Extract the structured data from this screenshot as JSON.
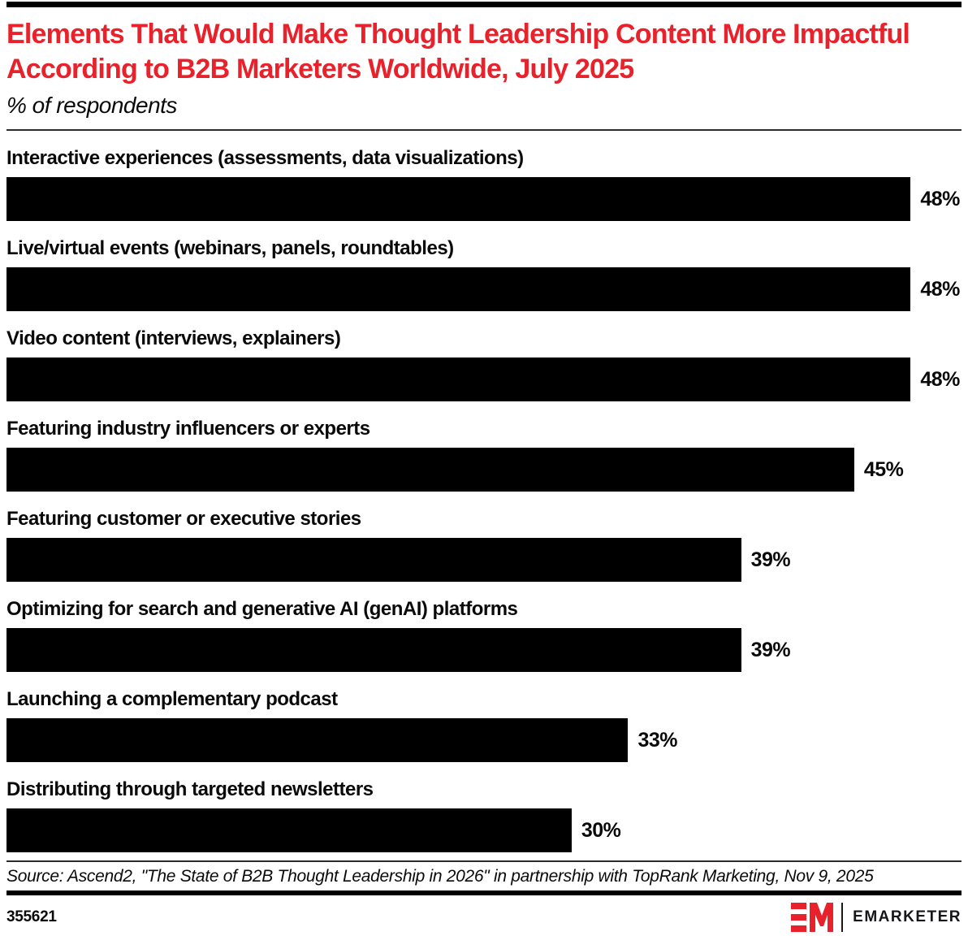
{
  "header": {
    "title": "Elements That Would Make Thought Leadership Content More Impactful According to B2B Marketers Worldwide, July 2025",
    "subtitle": "% of respondents"
  },
  "chart_data": {
    "type": "bar",
    "orientation": "horizontal",
    "title": "Elements That Would Make Thought Leadership Content More Impactful According to B2B Marketers Worldwide, July 2025",
    "subtitle": "% of respondents",
    "xlabel": "",
    "ylabel": "",
    "categories": [
      "Interactive experiences (assessments, data visualizations)",
      "Live/virtual events (webinars, panels, roundtables)",
      "Video content (interviews, explainers)",
      "Featuring industry influencers or experts",
      "Featuring customer or executive stories",
      "Optimizing for search and generative AI (genAI) platforms",
      "Launching a complementary podcast",
      "Distributing through targeted newsletters"
    ],
    "values": [
      48,
      48,
      48,
      45,
      39,
      39,
      33,
      30
    ],
    "value_suffix": "%",
    "xlim": [
      0,
      50.7
    ],
    "grid": false,
    "legend": "none",
    "value_labels": "outside-end",
    "bar_color": "#000000"
  },
  "footer": {
    "source": "Source: Ascend2, \"The State of B2B Thought Leadership in 2026\" in partnership with TopRank Marketing, Nov 9, 2025",
    "chart_id": "355621",
    "brand": {
      "monogram": "EM",
      "name": "EMARKETER"
    }
  },
  "colors": {
    "accent_red": "#e8212a",
    "bar": "#000000",
    "text": "#0a0a0a"
  }
}
